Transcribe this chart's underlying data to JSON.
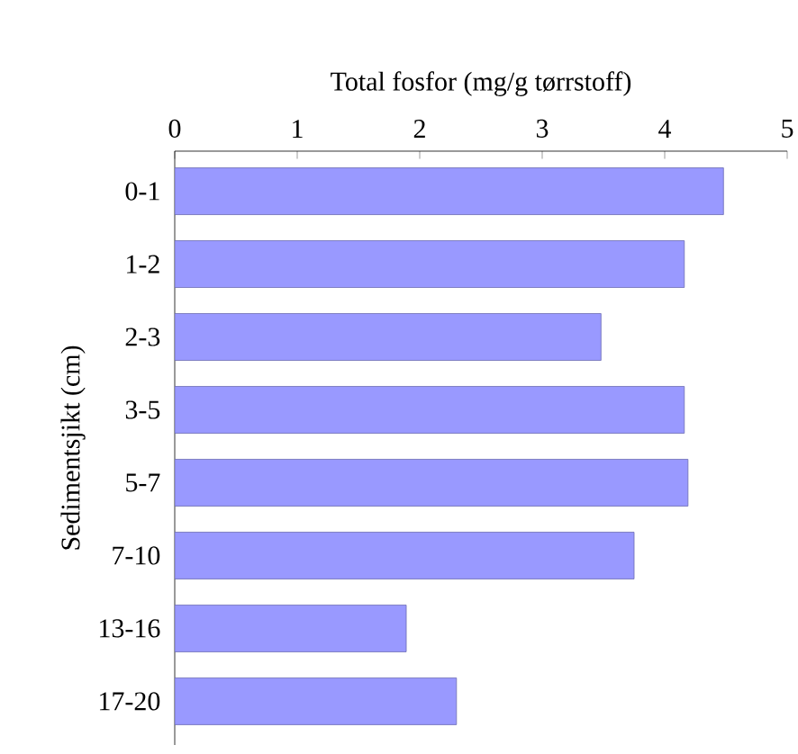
{
  "chart_data": {
    "type": "bar",
    "orientation": "horizontal",
    "xlabel": "Total fosfor (mg/g tørrstoff)",
    "ylabel": "Sedimentsjikt (cm)",
    "categories": [
      "0-1",
      "1-2",
      "2-3",
      "3-5",
      "5-7",
      "7-10",
      "13-16",
      "17-20"
    ],
    "values": [
      4.48,
      4.16,
      3.48,
      4.16,
      4.19,
      3.75,
      1.89,
      2.3
    ],
    "color": "#9999ff",
    "xlim": [
      0,
      5
    ],
    "xticks": [
      0,
      1,
      2,
      3,
      4,
      5
    ]
  }
}
